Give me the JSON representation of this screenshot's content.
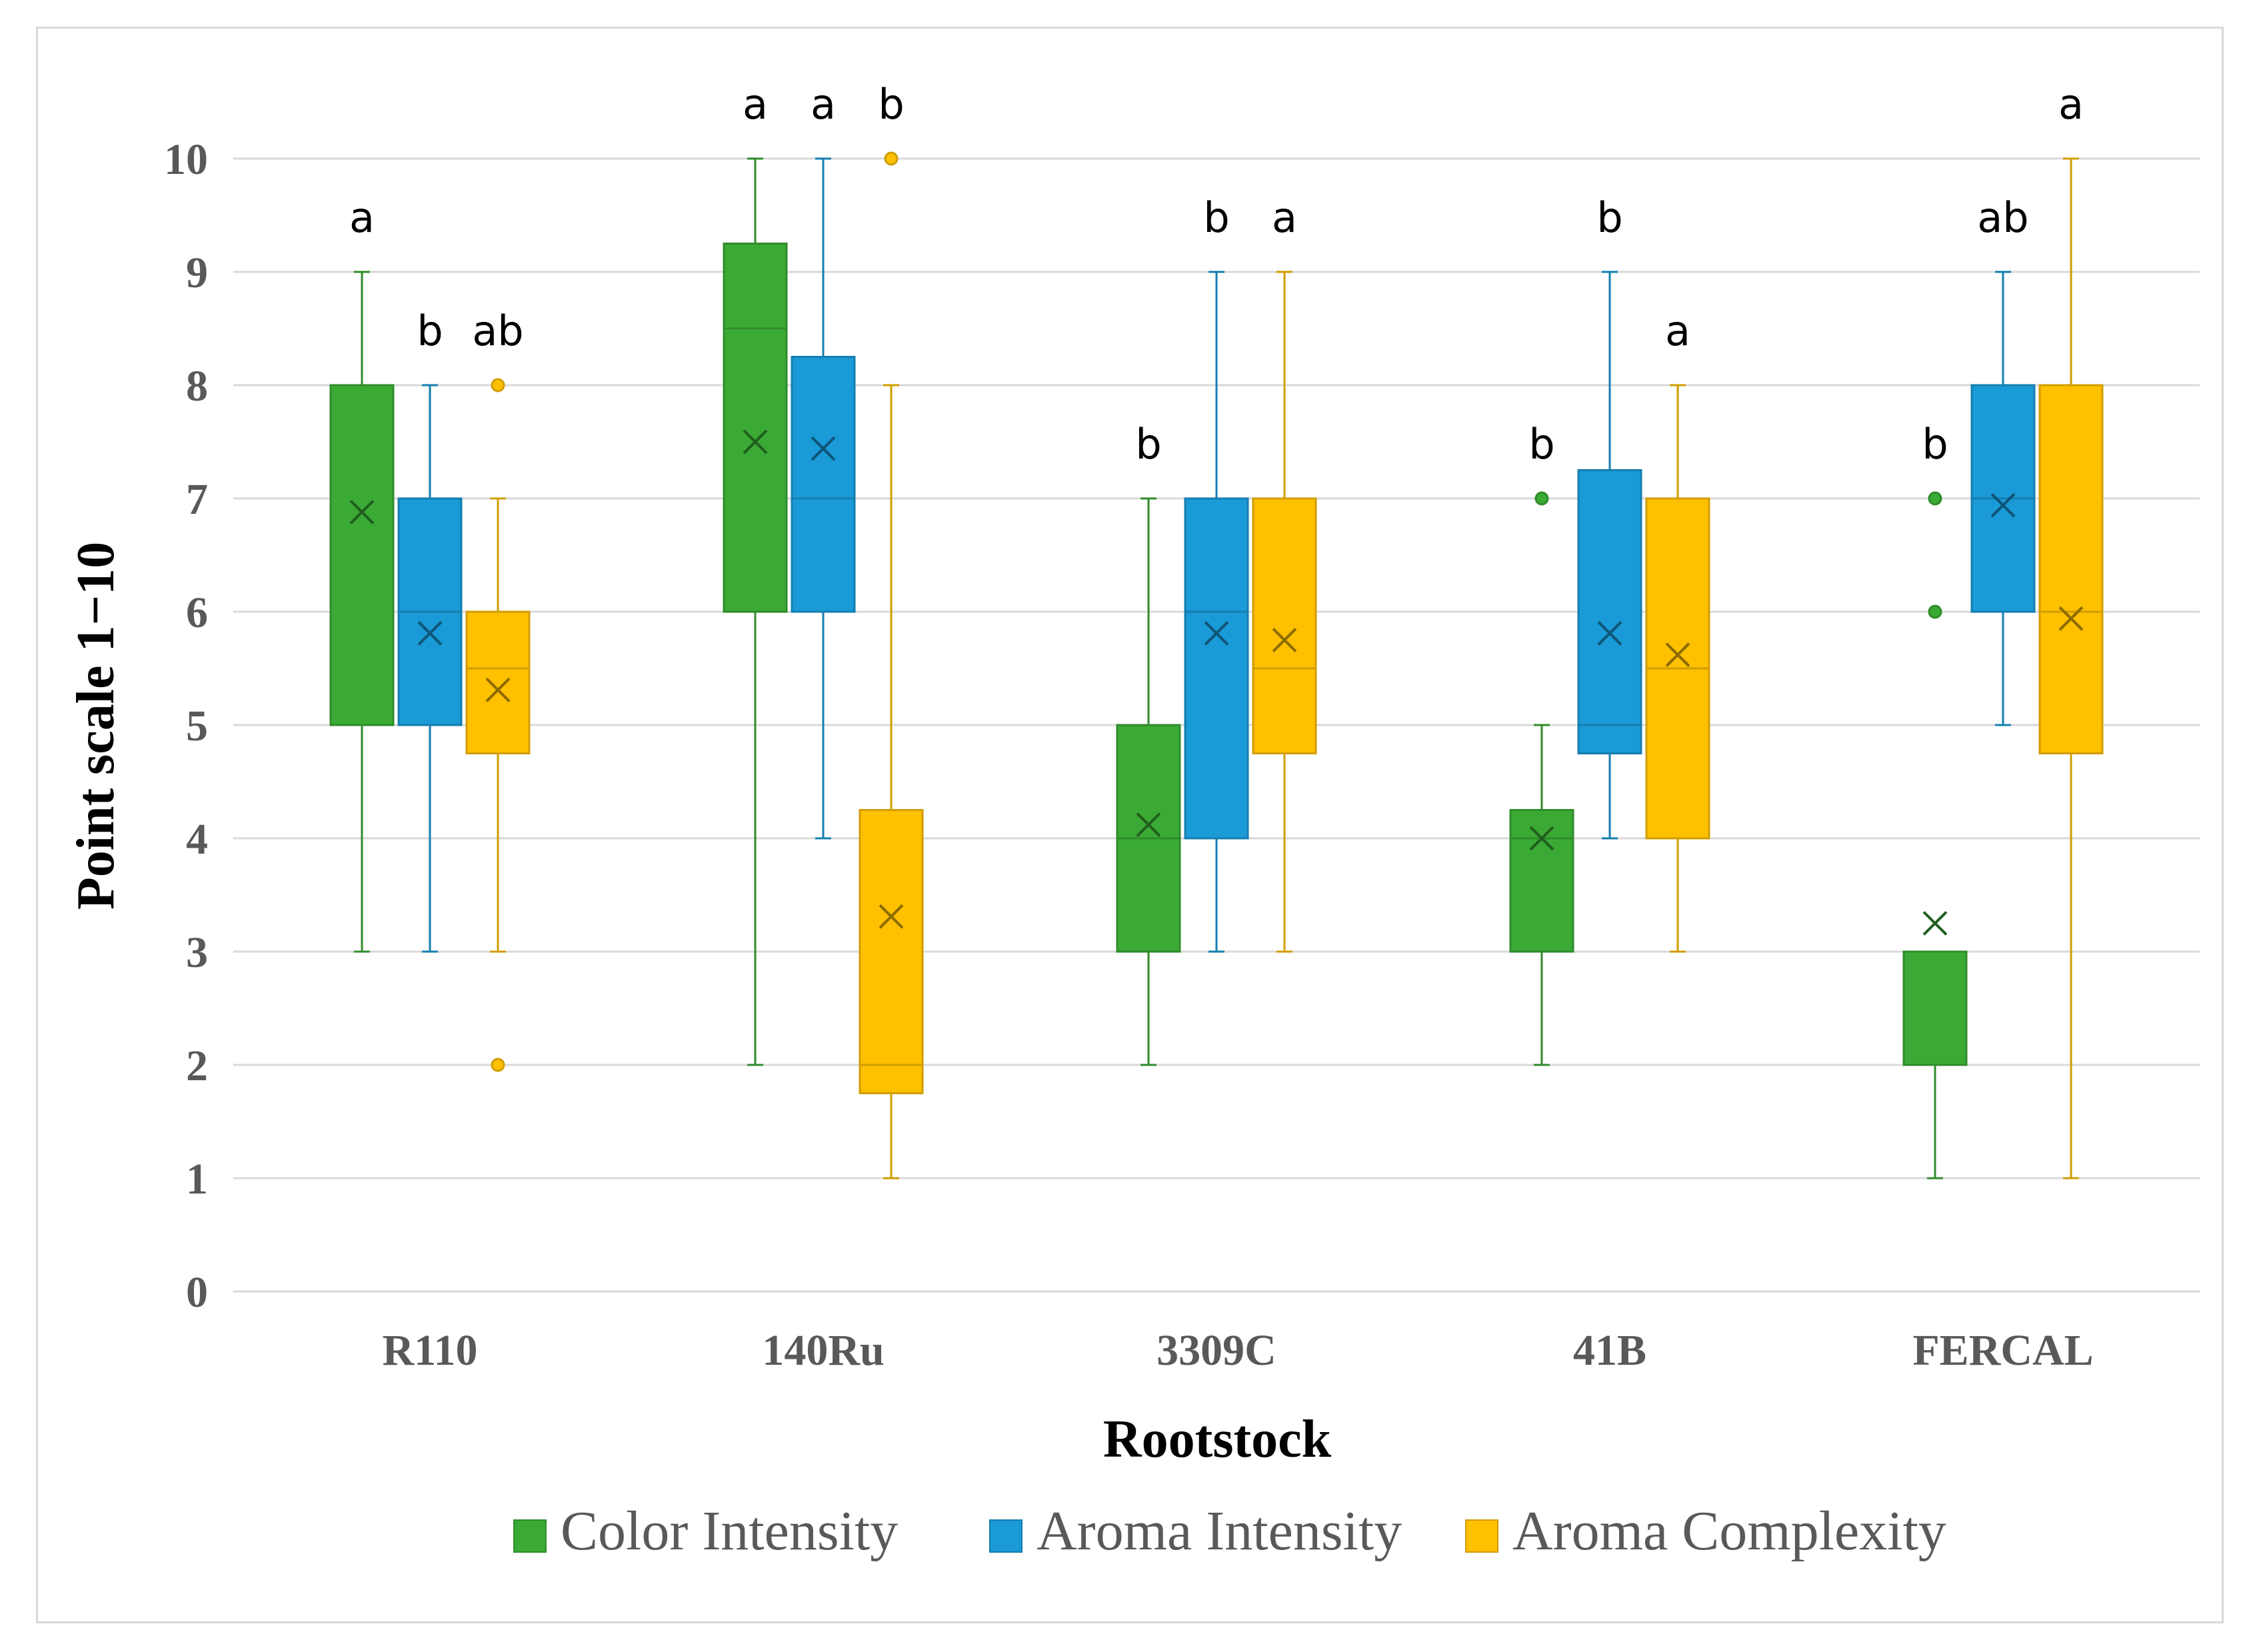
{
  "chart_data": {
    "type": "box",
    "xlabel": "Rootstock",
    "ylabel": "Point scale 1−10",
    "ylim": [
      0,
      10
    ],
    "yticks": [
      0,
      1,
      2,
      3,
      4,
      5,
      6,
      7,
      8,
      9,
      10
    ],
    "grid": true,
    "legend_position": "bottom",
    "categories": [
      "R110",
      "140Ru",
      "3309C",
      "41B",
      "FERCAL"
    ],
    "series": [
      {
        "name": "Color Intensity",
        "color": "#3aaa35",
        "boxes": [
          {
            "min": 3,
            "q1": 5,
            "median": 5,
            "q3": 8,
            "max": 9,
            "mean": 6.88,
            "outliers": [],
            "letter": "a"
          },
          {
            "min": 2,
            "q1": 6,
            "median": 8.5,
            "q3": 9.25,
            "max": 10,
            "mean": 7.5,
            "outliers": [],
            "letter": "a"
          },
          {
            "min": 2,
            "q1": 3,
            "median": 4,
            "q3": 5,
            "max": 7,
            "mean": 4.12,
            "outliers": [],
            "letter": "b"
          },
          {
            "min": 2,
            "q1": 3,
            "median": 4,
            "q3": 4.25,
            "max": 5,
            "mean": 4.0,
            "outliers": [
              7
            ],
            "letter": "b"
          },
          {
            "min": 1,
            "q1": 2,
            "median": 3,
            "q3": 3,
            "max": 3,
            "mean": 3.25,
            "outliers": [
              6,
              7
            ],
            "letter": "b"
          }
        ]
      },
      {
        "name": "Aroma Intensity",
        "color": "#1a9ad6",
        "boxes": [
          {
            "min": 3,
            "q1": 5,
            "median": 6,
            "q3": 7,
            "max": 8,
            "mean": 5.81,
            "outliers": [],
            "letter": "b"
          },
          {
            "min": 4,
            "q1": 6,
            "median": 7,
            "q3": 8.25,
            "max": 10,
            "mean": 7.44,
            "outliers": [],
            "letter": "a"
          },
          {
            "min": 3,
            "q1": 4,
            "median": 6,
            "q3": 7,
            "max": 9,
            "mean": 5.81,
            "outliers": [],
            "letter": "b"
          },
          {
            "min": 4,
            "q1": 4.75,
            "median": 5,
            "q3": 7.25,
            "max": 9,
            "mean": 5.81,
            "outliers": [],
            "letter": "b"
          },
          {
            "min": 5,
            "q1": 6,
            "median": 7,
            "q3": 8,
            "max": 9,
            "mean": 6.94,
            "outliers": [],
            "letter": "ab"
          }
        ]
      },
      {
        "name": "Aroma Complexity",
        "color": "#ffc000",
        "boxes": [
          {
            "min": 3,
            "q1": 4.75,
            "median": 5.5,
            "q3": 6,
            "max": 7,
            "mean": 5.31,
            "outliers": [
              2,
              8
            ],
            "letter": "ab"
          },
          {
            "min": 1,
            "q1": 1.75,
            "median": 2,
            "q3": 4.25,
            "max": 8,
            "mean": 3.31,
            "outliers": [
              10
            ],
            "letter": "b"
          },
          {
            "min": 3,
            "q1": 4.75,
            "median": 5.5,
            "q3": 7,
            "max": 9,
            "mean": 5.75,
            "outliers": [],
            "letter": "a"
          },
          {
            "min": 3,
            "q1": 4,
            "median": 5.5,
            "q3": 7,
            "max": 8,
            "mean": 5.62,
            "outliers": [],
            "letter": "a"
          },
          {
            "min": 1,
            "q1": 4.75,
            "median": 6,
            "q3": 8,
            "max": 10,
            "mean": 5.94,
            "outliers": [],
            "letter": "a"
          }
        ]
      }
    ]
  }
}
